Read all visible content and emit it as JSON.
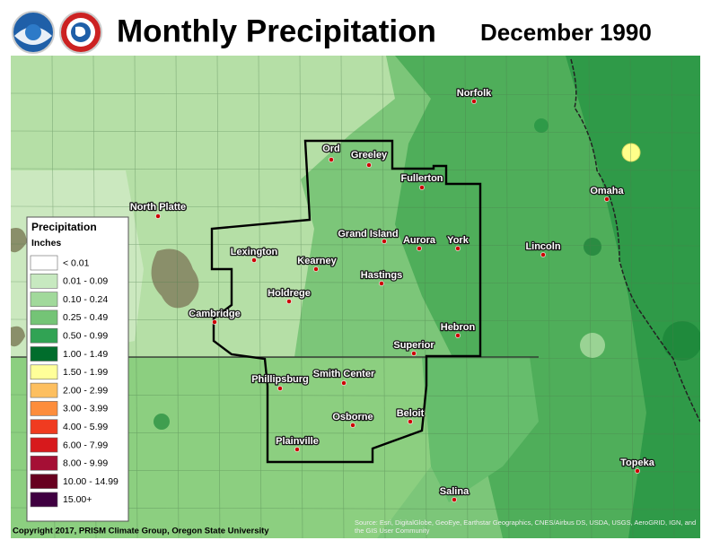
{
  "header": {
    "title": "Monthly Precipitation",
    "date": "December 1990"
  },
  "legend": {
    "title": "Precipitation",
    "units": "Inches",
    "items": [
      {
        "label": "< 0.01",
        "color": "#ffffff"
      },
      {
        "label": "0.01 - 0.09",
        "color": "#c7e9c0"
      },
      {
        "label": "0.10 - 0.24",
        "color": "#a1d99b"
      },
      {
        "label": "0.25 - 0.49",
        "color": "#74c476"
      },
      {
        "label": "0.50 - 0.99",
        "color": "#31a354"
      },
      {
        "label": "1.00 - 1.49",
        "color": "#006d2c"
      },
      {
        "label": "1.50 - 1.99",
        "color": "#ffff99"
      },
      {
        "label": "2.00 - 2.99",
        "color": "#fdbf5f"
      },
      {
        "label": "3.00 - 3.99",
        "color": "#fd8d3c"
      },
      {
        "label": "4.00 - 5.99",
        "color": "#f03b20"
      },
      {
        "label": "6.00 - 7.99",
        "color": "#d7191c"
      },
      {
        "label": "8.00 - 9.99",
        "color": "#a50f35"
      },
      {
        "label": "10.00 - 14.99",
        "color": "#67001f"
      },
      {
        "label": "15.00+",
        "color": "#3f0040"
      }
    ]
  },
  "cities": [
    "North Platte",
    "Ord",
    "Greeley",
    "Fullerton",
    "Norfolk",
    "Omaha",
    "Lexington",
    "Kearney",
    "Grand Island",
    "Aurora",
    "York",
    "Lincoln",
    "Hastings",
    "Holdrege",
    "Cambridge",
    "Hebron",
    "Superior",
    "Phillipsburg",
    "Smith Center",
    "Beloit",
    "Osborne",
    "Plainville",
    "Topeka",
    "Salina"
  ],
  "footer": {
    "copyright": "Copyright 2017, PRISM Climate Group, Oregon State University",
    "source": "Source: Esri, DigitalGlobe, GeoEye, Earthstar Geographics, CNES/Airbus DS, USDA, USGS, AeroGRID, IGN, and the GIS User Community"
  }
}
